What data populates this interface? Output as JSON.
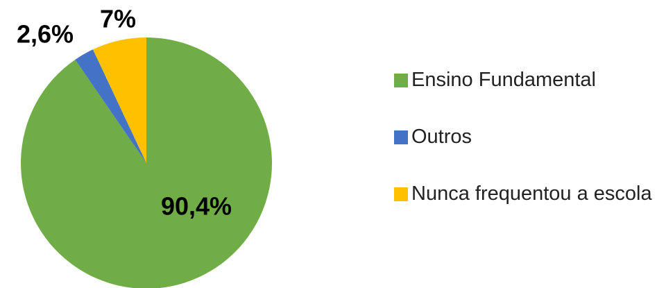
{
  "chart_data": {
    "type": "pie",
    "categories": [
      "Ensino Fundamental",
      "Outros",
      "Nunca frequentou a escola"
    ],
    "values": [
      90.4,
      2.6,
      7
    ],
    "value_labels": [
      "90,4%",
      "2,6%",
      "7%"
    ],
    "colors": [
      "#70ad47",
      "#4472c4",
      "#ffc000"
    ]
  }
}
